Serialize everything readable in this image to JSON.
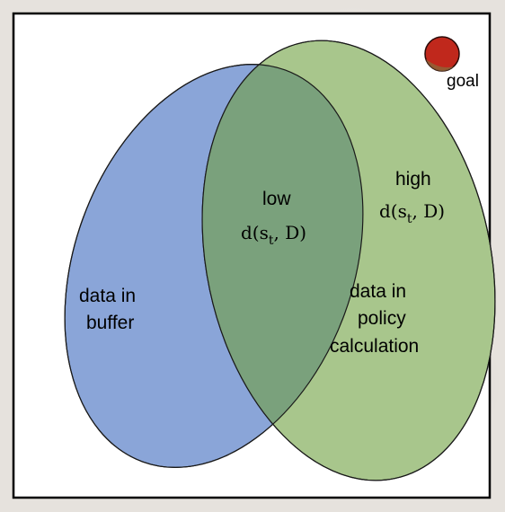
{
  "regions": {
    "buffer": {
      "label_line1": "data in",
      "label_line2": "buffer",
      "color": "#8aa5d8"
    },
    "policy": {
      "label_line1": "data in",
      "label_line2": "policy",
      "label_line3": "calculation",
      "color": "#a8c68c"
    },
    "overlap": {
      "label_word": "low",
      "formula_prefix": "d(s",
      "formula_sub": "t",
      "formula_suffix": ", D)",
      "color": "#7aa17c"
    },
    "policy_right": {
      "label_word": "high",
      "formula_prefix": "d(s",
      "formula_sub": "t",
      "formula_suffix": ", D)"
    }
  },
  "goal": {
    "label": "goal",
    "color": "#c0281c"
  }
}
